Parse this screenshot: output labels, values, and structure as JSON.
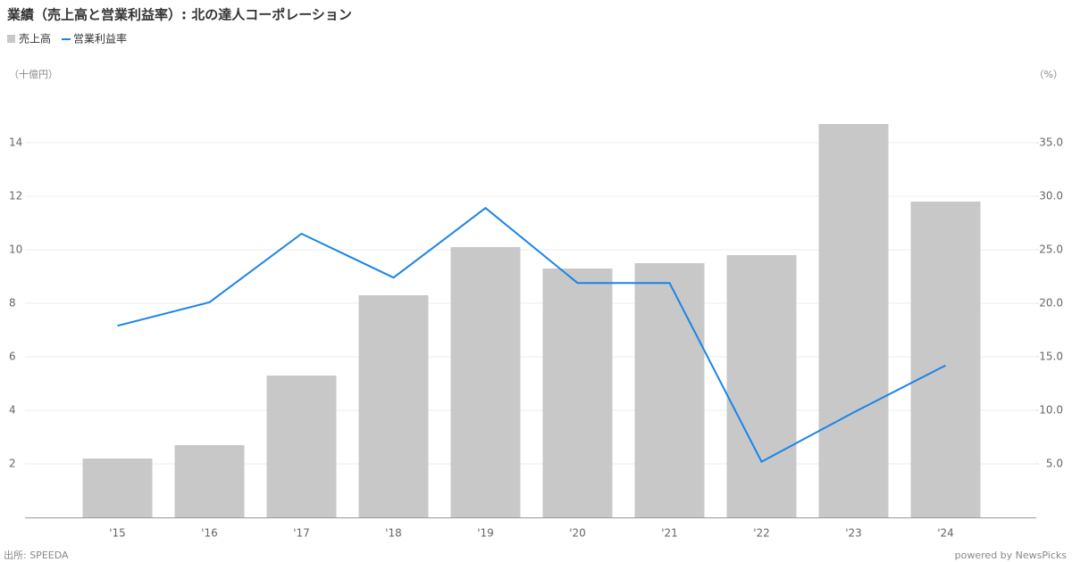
{
  "chart_data": {
    "type": "bar_line",
    "title": "業績（売上高と営業利益率）: 北の達人コーポレーション",
    "y_label": "（十億円）",
    "y2_label": "（%）",
    "source": "出所: SPEEDA",
    "credit": "powered by NewsPicks",
    "categories": [
      "'15",
      "'16",
      "'17",
      "'18",
      "'19",
      "'20",
      "'21",
      "'22",
      "'23",
      "'24"
    ],
    "series": [
      {
        "name": "売上高",
        "color": "#c8c8c8",
        "type": "bar",
        "values": [
          2.2,
          2.7,
          5.3,
          8.3,
          10.1,
          9.3,
          9.5,
          9.8,
          14.7,
          11.8
        ]
      },
      {
        "name": "営業利益率",
        "color": "#1a84e8",
        "type": "line",
        "axis": "y2",
        "values": [
          17.9,
          20.1,
          26.5,
          22.4,
          28.9,
          21.9,
          21.9,
          5.2,
          9.8,
          14.2
        ]
      }
    ],
    "ylim": [
      0,
      16
    ],
    "yticks": [
      2,
      4,
      6,
      8,
      10,
      12,
      14
    ],
    "y2lim": [
      0,
      40
    ],
    "y2ticks": [
      {
        "value": 5,
        "label": "5.0"
      },
      {
        "value": 10,
        "label": "10.0"
      },
      {
        "value": 15,
        "label": "15.0"
      },
      {
        "value": 20,
        "label": "20.0"
      },
      {
        "value": 25,
        "label": "25.0"
      },
      {
        "value": 30,
        "label": "30.0"
      },
      {
        "value": 35,
        "label": "35.0"
      }
    ],
    "grid": true
  }
}
